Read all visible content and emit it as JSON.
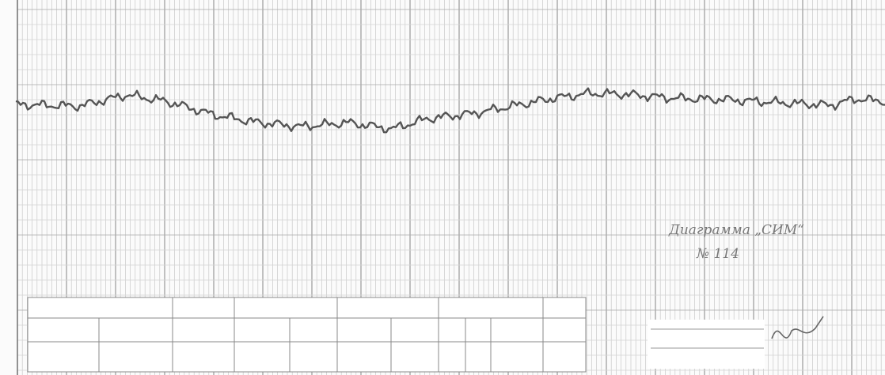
{
  "annotation": {
    "title": "Диаграмма „СИМ“",
    "number": "№ 114"
  }
}
